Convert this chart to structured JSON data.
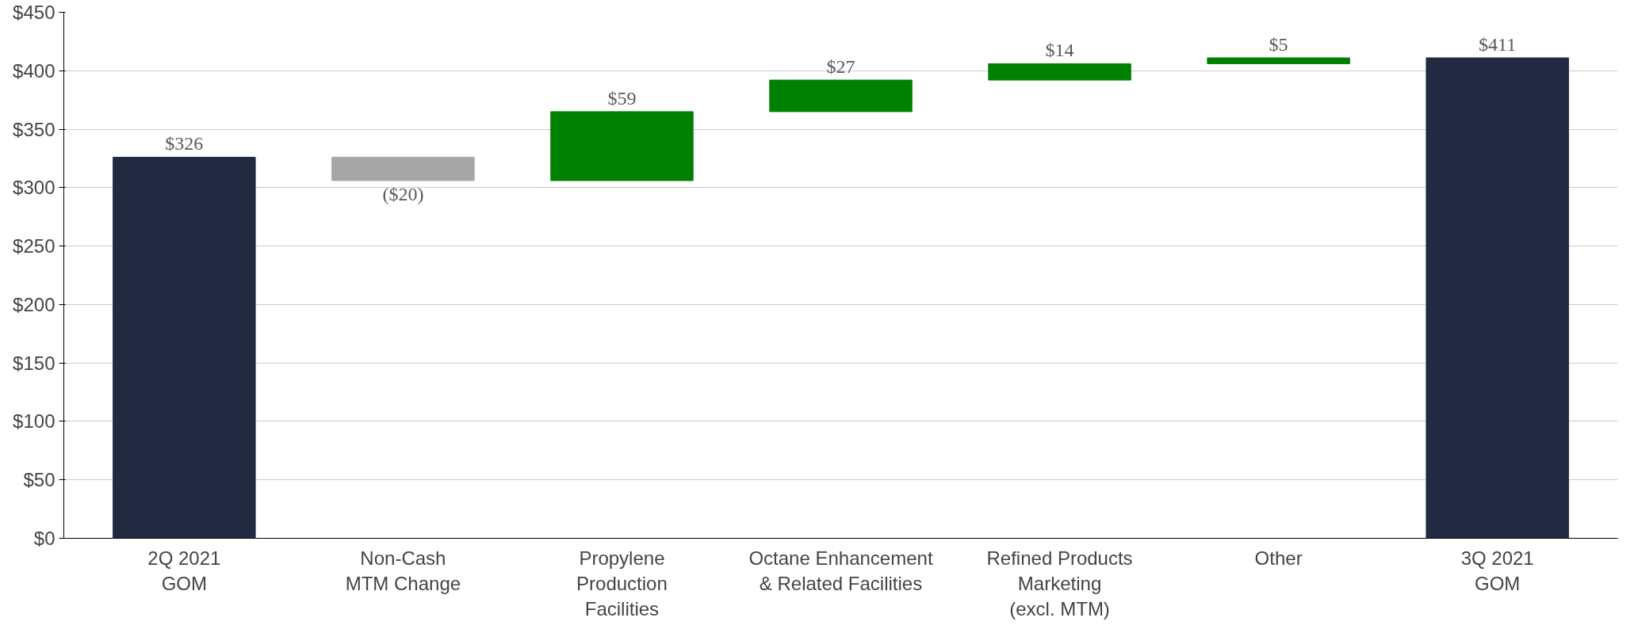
{
  "chart_data": {
    "type": "bar",
    "categories": [
      "2Q 2021\nGOM",
      "Non-Cash\nMTM Change",
      "Propylene\nProduction\nFacilities",
      "Octane Enhancement\n& Related Facilities",
      "Refined Products\nMarketing\n(excl. MTM)",
      "Other",
      "3Q 2021\nGOM"
    ],
    "values": [
      326,
      -20,
      59,
      27,
      14,
      5,
      411
    ],
    "base": [
      0,
      326,
      306,
      365,
      392,
      406,
      0
    ],
    "colors": [
      "#222a42",
      "#a6a6a6",
      "#008000",
      "#008000",
      "#008000",
      "#008000",
      "#222a42"
    ],
    "value_labels": [
      "$326",
      "($20)",
      "$59",
      "$27",
      "$14",
      "$5",
      "$411"
    ],
    "ylim": [
      0,
      450
    ],
    "yticks": [
      {
        "value": 0,
        "label": "$0"
      },
      {
        "value": 50,
        "label": "$50"
      },
      {
        "value": 100,
        "label": "$100"
      },
      {
        "value": 150,
        "label": "$150"
      },
      {
        "value": 200,
        "label": "$200"
      },
      {
        "value": 250,
        "label": "$250"
      },
      {
        "value": 300,
        "label": "$300"
      },
      {
        "value": 350,
        "label": "$350"
      },
      {
        "value": 400,
        "label": "$400"
      },
      {
        "value": 450,
        "label": "$450"
      }
    ],
    "grid": "y"
  }
}
